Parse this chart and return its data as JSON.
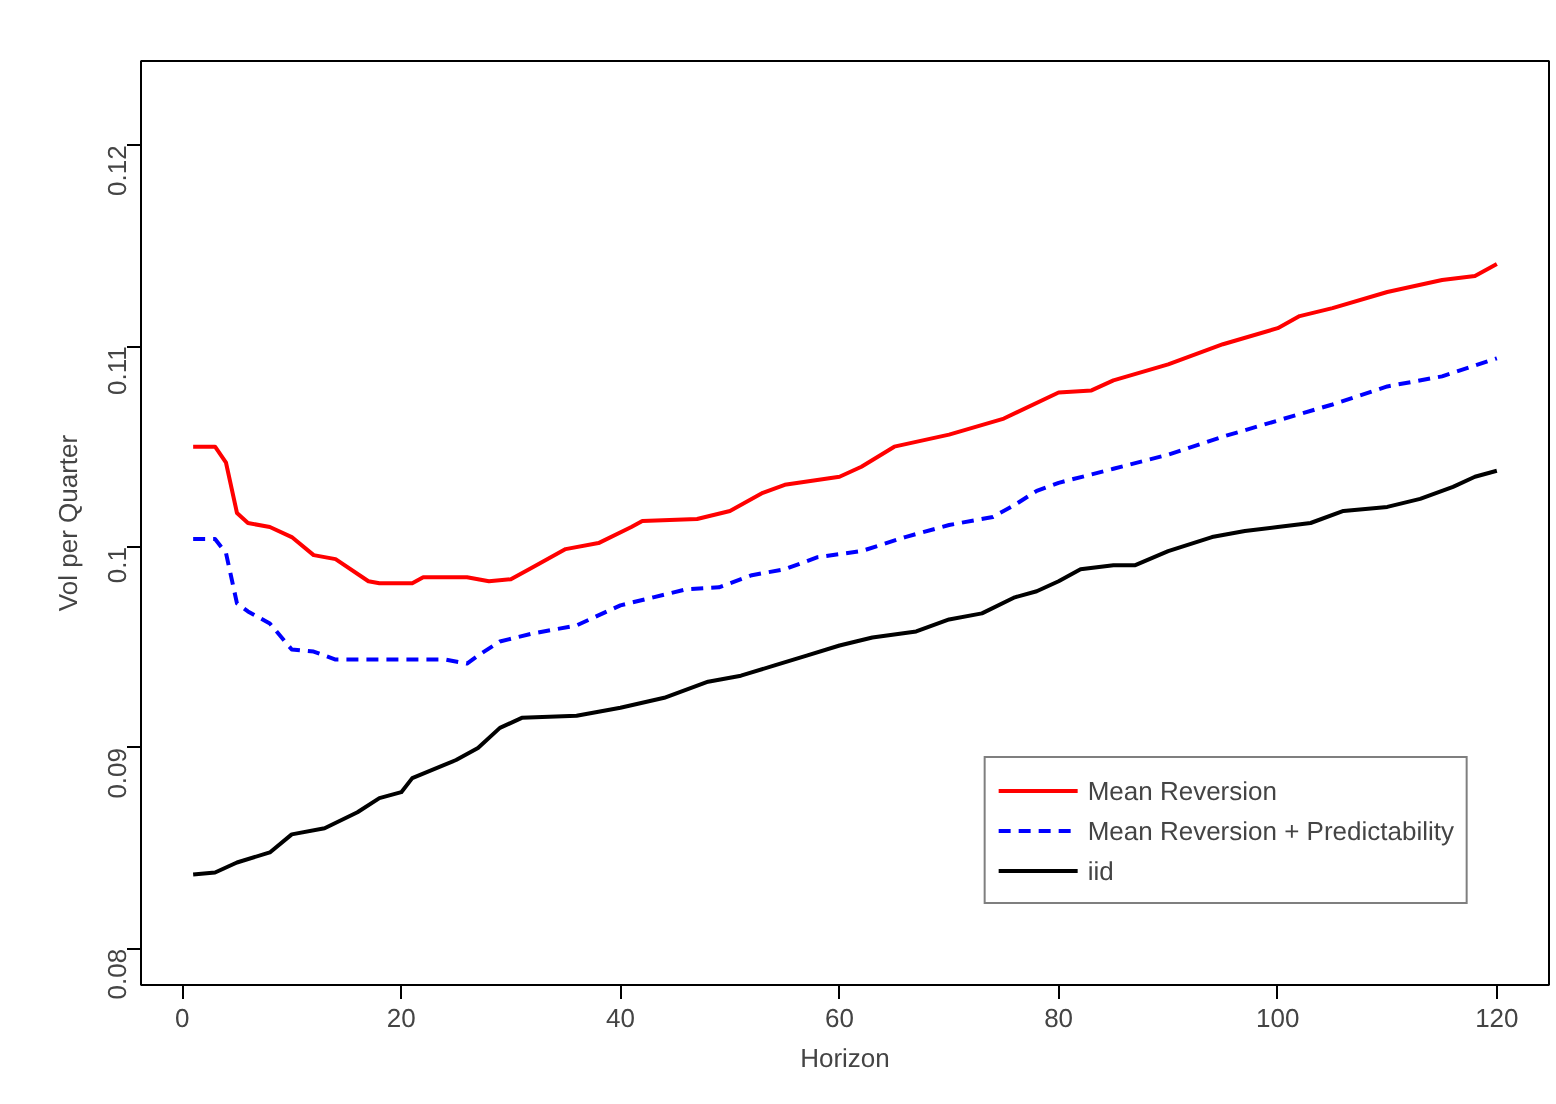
{
  "chart_data": {
    "type": "line",
    "xlabel": "Horizon",
    "ylabel": "Vol per Quarter",
    "xlim": [
      -3.76,
      124.76
    ],
    "ylim": [
      0.0782,
      0.1242
    ],
    "xticks": [
      0,
      20,
      40,
      60,
      80,
      100,
      120
    ],
    "yticks": [
      0.08,
      0.09,
      0.1,
      0.11,
      0.12
    ],
    "grid": false,
    "legend": "bottom right",
    "series": [
      {
        "name": "Mean Reversion",
        "color": "#ff0000",
        "line_style": "solid",
        "x": [
          1,
          3,
          4,
          5,
          6,
          8,
          10,
          12,
          14,
          17,
          18,
          21,
          22,
          26,
          28,
          30,
          32,
          35,
          38,
          41,
          42,
          47,
          50,
          53,
          55,
          60,
          62,
          65,
          70,
          75,
          80,
          83,
          85,
          90,
          95,
          100,
          102,
          105,
          110,
          115,
          118,
          120
        ],
        "values": [
          0.105,
          0.105,
          0.1042,
          0.1017,
          0.1012,
          0.101,
          0.1005,
          0.0996,
          0.0994,
          0.0983,
          0.0982,
          0.0982,
          0.0985,
          0.0985,
          0.0983,
          0.0984,
          0.099,
          0.0999,
          0.1002,
          0.101,
          0.1013,
          0.1014,
          0.1018,
          0.1027,
          0.1031,
          0.1035,
          0.104,
          0.105,
          0.1056,
          0.1064,
          0.1077,
          0.1078,
          0.1083,
          0.1091,
          0.1101,
          0.1109,
          0.1115,
          0.1119,
          0.1127,
          0.1133,
          0.1135,
          0.1141
        ]
      },
      {
        "name": "Mean Reversion + Predictability",
        "color": "#0000ff",
        "line_style": "dashed",
        "x": [
          1,
          3,
          4,
          5,
          6,
          8,
          10,
          12,
          14,
          20,
          24,
          26,
          27,
          29,
          32,
          36,
          40,
          43,
          46,
          49,
          52,
          55,
          58,
          62,
          66,
          70,
          74,
          76,
          78,
          80,
          85,
          90,
          95,
          100,
          105,
          110,
          115,
          120
        ],
        "values": [
          0.1004,
          0.1004,
          0.0997,
          0.0972,
          0.0968,
          0.0962,
          0.0949,
          0.0948,
          0.0944,
          0.0944,
          0.0944,
          0.0942,
          0.0946,
          0.0953,
          0.0957,
          0.0961,
          0.0971,
          0.0975,
          0.0979,
          0.098,
          0.0986,
          0.0989,
          0.0995,
          0.0998,
          0.1005,
          0.1011,
          0.1015,
          0.1021,
          0.1028,
          0.1032,
          0.1039,
          0.1046,
          0.1055,
          0.1063,
          0.1071,
          0.108,
          0.1085,
          0.1094
        ]
      },
      {
        "name": "iid",
        "color": "#000000",
        "line_style": "solid",
        "x": [
          1,
          3,
          5,
          8,
          10,
          13,
          16,
          18,
          20,
          21,
          25,
          27,
          29,
          31,
          36,
          40,
          44,
          48,
          51,
          54,
          57,
          60,
          63,
          67,
          70,
          73,
          76,
          78,
          80,
          82,
          85,
          87,
          90,
          94,
          97,
          100,
          103,
          106,
          110,
          113,
          116,
          118,
          120
        ],
        "values": [
          0.0837,
          0.0838,
          0.0843,
          0.0848,
          0.0857,
          0.086,
          0.0868,
          0.0875,
          0.0878,
          0.0885,
          0.0894,
          0.09,
          0.091,
          0.0915,
          0.0916,
          0.092,
          0.0925,
          0.0933,
          0.0936,
          0.0941,
          0.0946,
          0.0951,
          0.0955,
          0.0958,
          0.0964,
          0.0967,
          0.0975,
          0.0978,
          0.0983,
          0.0989,
          0.0991,
          0.0991,
          0.0998,
          0.1005,
          0.1008,
          0.101,
          0.1012,
          0.1018,
          0.102,
          0.1024,
          0.103,
          0.1035,
          0.1038
        ]
      }
    ]
  }
}
